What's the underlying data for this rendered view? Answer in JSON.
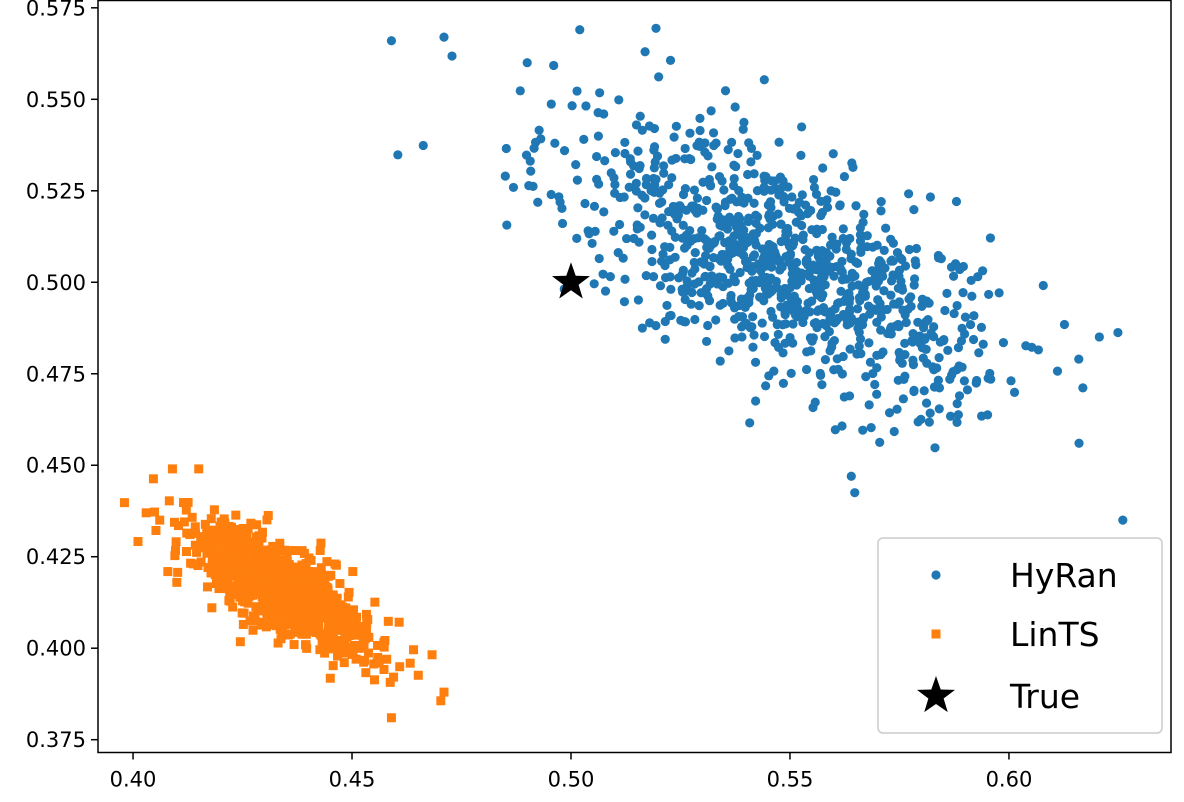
{
  "chart_data": {
    "type": "scatter",
    "title": "",
    "xlabel": "",
    "ylabel": "",
    "xlim": [
      0.392,
      0.637
    ],
    "ylim": [
      0.3715,
      0.577
    ],
    "grid": false,
    "legend_position": "bottom-right",
    "x_ticks": [
      0.4,
      0.45,
      0.5,
      0.55,
      0.6
    ],
    "x_tick_labels": [
      "0.40",
      "0.45",
      "0.50",
      "0.55",
      "0.60"
    ],
    "y_ticks": [
      0.375,
      0.4,
      0.425,
      0.45,
      0.475,
      0.5,
      0.525,
      0.55,
      0.575
    ],
    "y_tick_labels": [
      "0.375",
      "0.400",
      "0.425",
      "0.450",
      "0.475",
      "0.500",
      "0.525",
      "0.550",
      "0.575"
    ],
    "series": [
      {
        "name": "HyRan",
        "marker": "circle",
        "color": "#1f77b4",
        "n_points": 1000,
        "center": [
          0.548,
          0.505
        ],
        "spread_major": 0.028,
        "spread_minor": 0.013,
        "orientation_deg": -34,
        "notable_points": [
          {
            "x": 0.459,
            "y": 0.566
          },
          {
            "x": 0.471,
            "y": 0.567
          },
          {
            "x": 0.502,
            "y": 0.569
          },
          {
            "x": 0.626,
            "y": 0.435
          },
          {
            "x": 0.616,
            "y": 0.456
          },
          {
            "x": 0.564,
            "y": 0.447
          },
          {
            "x": 0.485,
            "y": 0.529
          },
          {
            "x": 0.49,
            "y": 0.56
          }
        ]
      },
      {
        "name": "LinTS",
        "marker": "square",
        "color": "#ff7f0e",
        "n_points": 1000,
        "center": [
          0.434,
          0.416
        ],
        "spread_major": 0.0125,
        "spread_minor": 0.0048,
        "orientation_deg": -40,
        "notable_points": [
          {
            "x": 0.403,
            "y": 0.437
          },
          {
            "x": 0.409,
            "y": 0.449
          },
          {
            "x": 0.415,
            "y": 0.449
          },
          {
            "x": 0.471,
            "y": 0.388
          },
          {
            "x": 0.459,
            "y": 0.381
          },
          {
            "x": 0.41,
            "y": 0.418
          }
        ]
      },
      {
        "name": "True",
        "marker": "star",
        "color": "#000000",
        "points": [
          {
            "x": 0.5,
            "y": 0.5
          }
        ]
      }
    ]
  }
}
